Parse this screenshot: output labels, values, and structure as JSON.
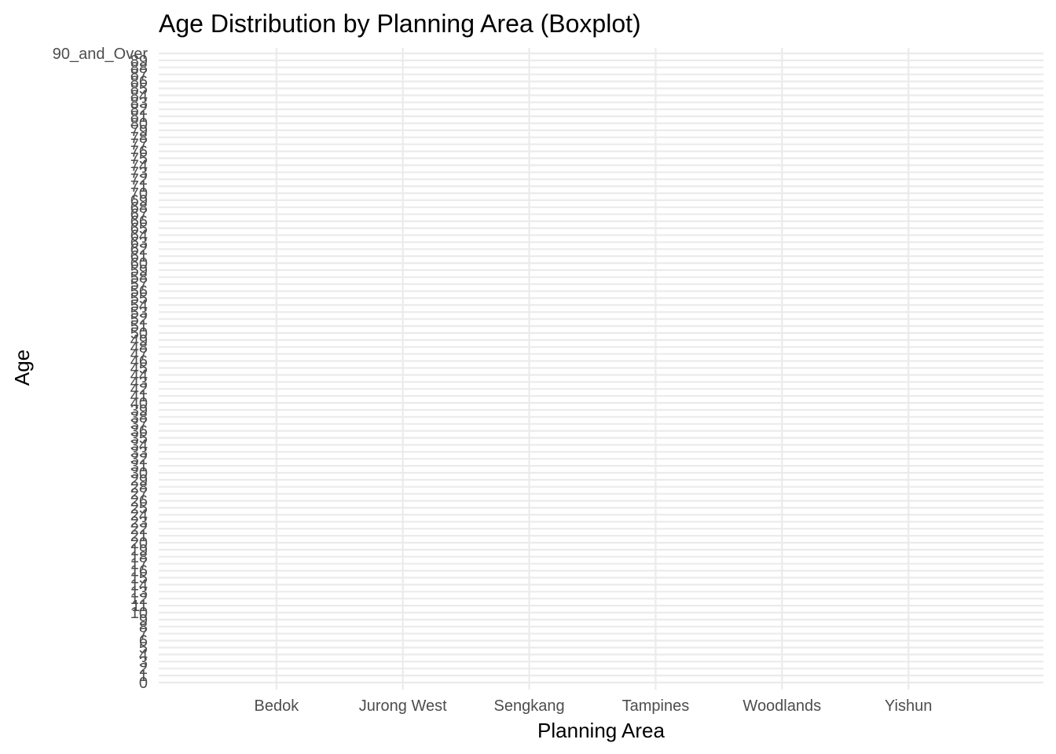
{
  "chart_data": {
    "type": "boxplot",
    "title": "Age Distribution by Planning Area (Boxplot)",
    "xlabel": "Planning Area",
    "ylabel": "Age",
    "categories": [
      "Bedok",
      "Jurong West",
      "Sengkang",
      "Tampines",
      "Woodlands",
      "Yishun"
    ],
    "y_levels": [
      "0",
      "1",
      "2",
      "3",
      "4",
      "5",
      "6",
      "7",
      "8",
      "9",
      "10",
      "11",
      "12",
      "13",
      "14",
      "15",
      "16",
      "17",
      "18",
      "19",
      "20",
      "21",
      "22",
      "23",
      "24",
      "25",
      "26",
      "27",
      "28",
      "29",
      "30",
      "31",
      "32",
      "33",
      "34",
      "35",
      "36",
      "37",
      "38",
      "39",
      "40",
      "41",
      "42",
      "43",
      "44",
      "45",
      "46",
      "47",
      "48",
      "49",
      "50",
      "51",
      "52",
      "53",
      "54",
      "55",
      "56",
      "57",
      "58",
      "59",
      "60",
      "61",
      "62",
      "63",
      "64",
      "65",
      "66",
      "67",
      "68",
      "69",
      "70",
      "71",
      "72",
      "73",
      "74",
      "75",
      "76",
      "77",
      "78",
      "79",
      "80",
      "81",
      "82",
      "83",
      "84",
      "85",
      "86",
      "87",
      "88",
      "89",
      "90_and_Over"
    ],
    "y_scale": "discrete",
    "series": [],
    "grid": true,
    "legend": "none"
  }
}
